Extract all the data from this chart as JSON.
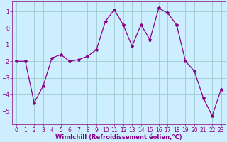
{
  "x": [
    0,
    1,
    2,
    3,
    4,
    5,
    6,
    7,
    8,
    9,
    10,
    11,
    12,
    13,
    14,
    15,
    16,
    17,
    18,
    19,
    20,
    21,
    22,
    23
  ],
  "y": [
    -2,
    -2,
    -4.5,
    -3.5,
    -1.8,
    -1.6,
    -2.0,
    -1.9,
    -1.7,
    -1.3,
    0.4,
    1.1,
    0.2,
    -1.1,
    0.2,
    -0.7,
    1.2,
    0.9,
    0.2,
    -2.0,
    -2.6,
    -4.2,
    -5.3,
    -3.7
  ],
  "line_color": "#880088",
  "marker": "*",
  "marker_size": 3,
  "bg_color": "#cceeff",
  "grid_color": "#99cccc",
  "xlabel": "Windchill (Refroidissement éolien,°C)",
  "xlabel_color": "#880088",
  "ylim": [
    -5.8,
    1.6
  ],
  "xlim": [
    -0.5,
    23.5
  ],
  "yticks": [
    -5,
    -4,
    -3,
    -2,
    -1,
    0,
    1
  ],
  "xticks": [
    0,
    1,
    2,
    3,
    4,
    5,
    6,
    7,
    8,
    9,
    10,
    11,
    12,
    13,
    14,
    15,
    16,
    17,
    18,
    19,
    20,
    21,
    22,
    23
  ],
  "tick_color": "#880088",
  "tick_fontsize": 5.5,
  "xlabel_fontsize": 6.0,
  "figsize": [
    3.2,
    2.0
  ],
  "dpi": 100
}
